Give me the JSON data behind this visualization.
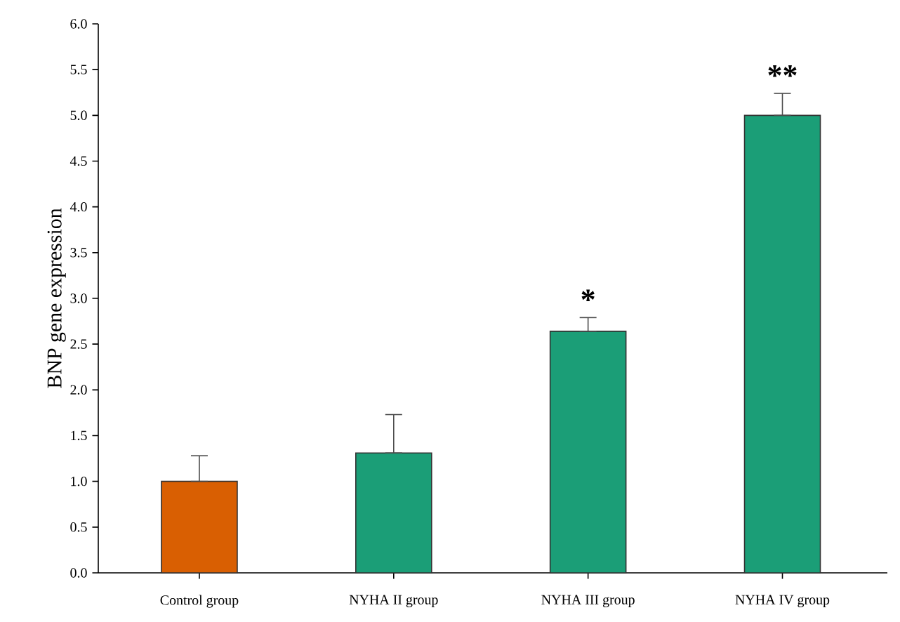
{
  "chart_data": {
    "type": "bar",
    "ylabel": "BNP gene expression",
    "categories": [
      "Control group",
      "NYHA II group",
      "NYHA III group",
      "NYHA IV group"
    ],
    "values": [
      1.0,
      1.31,
      2.64,
      5.0
    ],
    "colors": [
      "#d95f02",
      "#1b9e77",
      "#1b9e77",
      "#1b9e77"
    ],
    "errors": [
      [
        1.0,
        1.28
      ],
      [
        1.31,
        1.73
      ],
      [
        2.64,
        2.79
      ],
      [
        5.0,
        5.24
      ]
    ],
    "ylim": [
      0,
      6
    ],
    "yticks": [
      {
        "value": 0,
        "label": "0.0"
      },
      {
        "value": 0.5,
        "label": "0.5"
      },
      {
        "value": 1,
        "label": "1.0"
      },
      {
        "value": 1.5,
        "label": "1.5"
      },
      {
        "value": 2,
        "label": "2.0"
      },
      {
        "value": 2.5,
        "label": "2.5"
      },
      {
        "value": 3,
        "label": "3.0"
      },
      {
        "value": 3.5,
        "label": "3.5"
      },
      {
        "value": 4,
        "label": "4.0"
      },
      {
        "value": 4.5,
        "label": "4.5"
      },
      {
        "value": 5,
        "label": "5.0"
      },
      {
        "value": 5.5,
        "label": "5.5"
      },
      {
        "value": 6,
        "label": "6.0"
      }
    ],
    "value_labels": [
      null,
      null,
      "*",
      "**"
    ]
  }
}
